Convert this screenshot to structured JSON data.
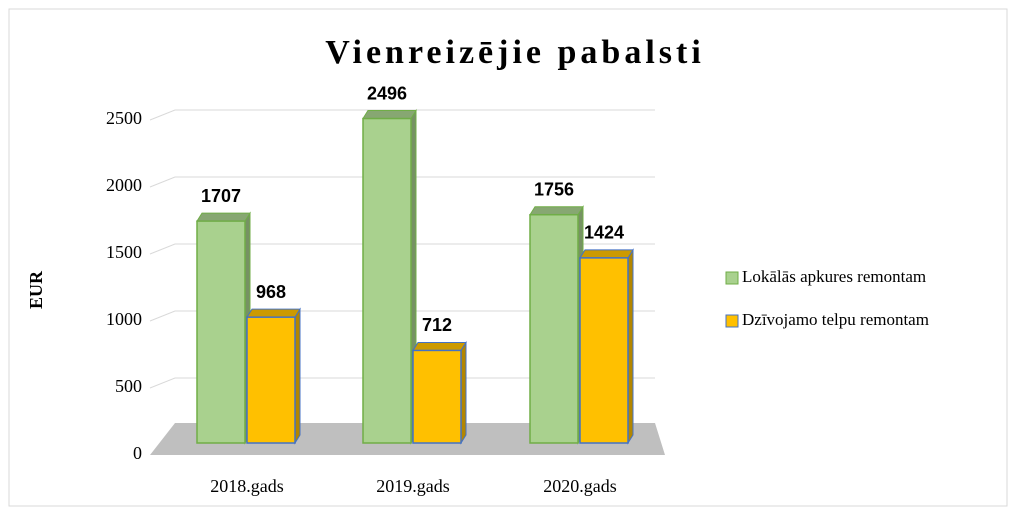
{
  "chart_data": {
    "type": "bar",
    "title": "Vienreizējie pabalsti",
    "ylabel": "EUR",
    "categories": [
      "2018.gads",
      "2019.gads",
      "2020.gads"
    ],
    "series": [
      {
        "name": "Lokālās apkures remontam",
        "color": "#a9d18e",
        "values": [
          1707,
          2496,
          1756
        ]
      },
      {
        "name": "Dzīvojamo telpu remontam",
        "color": "#ffc000",
        "values": [
          968,
          712,
          1424
        ]
      }
    ],
    "ylim": [
      0,
      2500
    ],
    "yticks": [
      0,
      500,
      1000,
      1500,
      2000,
      2500
    ],
    "grid": true,
    "legend": "right"
  }
}
